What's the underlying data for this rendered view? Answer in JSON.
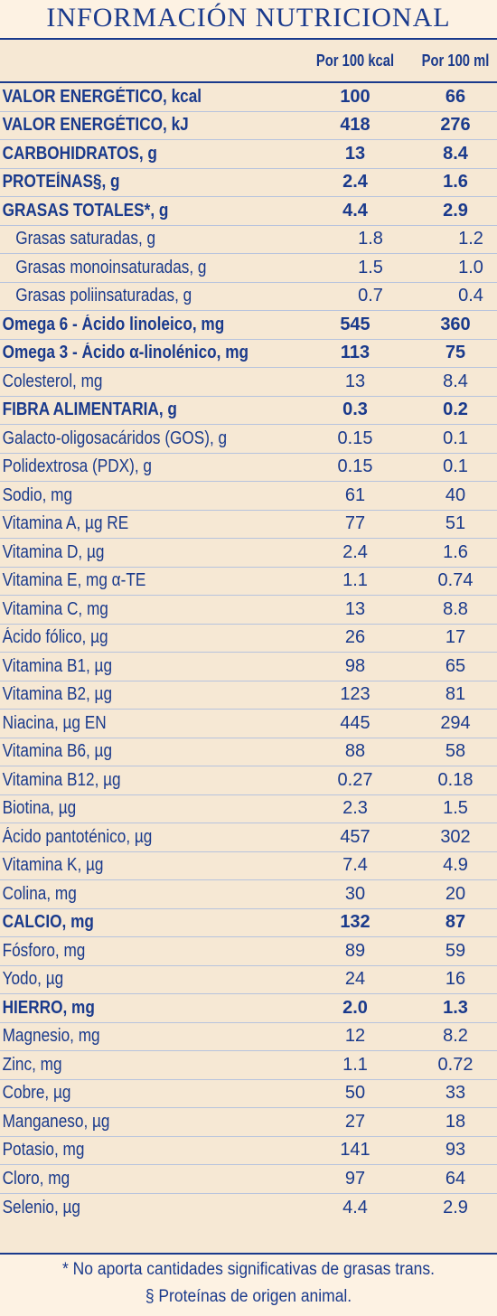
{
  "title": "INFORMACIÓN NUTRICIONAL",
  "columns": {
    "name": "",
    "per_kcal": "Por 100 kcal",
    "per_ml": "Por 100 ml"
  },
  "rows": [
    {
      "name": "VALOR ENERGÉTICO, kcal",
      "v1": "100",
      "v2": "66",
      "bold": true
    },
    {
      "name": "VALOR ENERGÉTICO, kJ",
      "v1": "418",
      "v2": "276",
      "bold": true
    },
    {
      "name": "CARBOHIDRATOS, g",
      "v1": "13",
      "v2": "8.4",
      "bold": true
    },
    {
      "name": "PROTEÍNAS§, g",
      "v1": "2.4",
      "v2": "1.6",
      "bold": true
    },
    {
      "name": "GRASAS TOTALES*, g",
      "v1": "4.4",
      "v2": "2.9",
      "bold": true
    },
    {
      "name": "Grasas saturadas, g",
      "v1": "1.8",
      "v2": "1.2",
      "sub": true
    },
    {
      "name": "Grasas monoinsaturadas, g",
      "v1": "1.5",
      "v2": "1.0",
      "sub": true
    },
    {
      "name": "Grasas poliinsaturadas, g",
      "v1": "0.7",
      "v2": "0.4",
      "sub": true
    },
    {
      "name": "Omega 6 - Ácido linoleico, mg",
      "v1": "545",
      "v2": "360",
      "bold": true
    },
    {
      "name": "Omega 3 - Ácido α-linolénico, mg",
      "v1": "113",
      "v2": "75",
      "bold": true
    },
    {
      "name": "Colesterol, mg",
      "v1": "13",
      "v2": "8.4"
    },
    {
      "name": "FIBRA ALIMENTARIA, g",
      "v1": "0.3",
      "v2": "0.2",
      "bold": true
    },
    {
      "name": "Galacto-oligosacáridos (GOS), g",
      "v1": "0.15",
      "v2": "0.1"
    },
    {
      "name": "Polidextrosa (PDX), g",
      "v1": "0.15",
      "v2": "0.1"
    },
    {
      "name": "Sodio, mg",
      "v1": "61",
      "v2": "40"
    },
    {
      "name": "Vitamina A, µg RE",
      "v1": "77",
      "v2": "51"
    },
    {
      "name": "Vitamina D, µg",
      "v1": "2.4",
      "v2": "1.6"
    },
    {
      "name": "Vitamina E, mg α-TE",
      "v1": "1.1",
      "v2": "0.74"
    },
    {
      "name": "Vitamina C, mg",
      "v1": "13",
      "v2": "8.8"
    },
    {
      "name": "Ácido fólico, µg",
      "v1": "26",
      "v2": "17"
    },
    {
      "name": "Vitamina B1, µg",
      "v1": "98",
      "v2": "65"
    },
    {
      "name": "Vitamina B2, µg",
      "v1": "123",
      "v2": "81"
    },
    {
      "name": "Niacina, µg EN",
      "v1": "445",
      "v2": "294"
    },
    {
      "name": "Vitamina B6, µg",
      "v1": "88",
      "v2": "58"
    },
    {
      "name": "Vitamina B12, µg",
      "v1": "0.27",
      "v2": "0.18"
    },
    {
      "name": "Biotina, µg",
      "v1": "2.3",
      "v2": "1.5"
    },
    {
      "name": "Ácido pantoténico, µg",
      "v1": "457",
      "v2": "302"
    },
    {
      "name": "Vitamina K, µg",
      "v1": "7.4",
      "v2": "4.9"
    },
    {
      "name": "Colina, mg",
      "v1": "30",
      "v2": "20"
    },
    {
      "name": "CALCIO, mg",
      "v1": "132",
      "v2": "87",
      "bold": true
    },
    {
      "name": "Fósforo, mg",
      "v1": "89",
      "v2": "59"
    },
    {
      "name": "Yodo, µg",
      "v1": "24",
      "v2": "16"
    },
    {
      "name": "HIERRO, mg",
      "v1": "2.0",
      "v2": "1.3",
      "bold": true
    },
    {
      "name": "Magnesio, mg",
      "v1": "12",
      "v2": "8.2"
    },
    {
      "name": "Zinc, mg",
      "v1": "1.1",
      "v2": "0.72"
    },
    {
      "name": "Cobre, µg",
      "v1": "50",
      "v2": "33"
    },
    {
      "name": "Manganeso, µg",
      "v1": "27",
      "v2": "18"
    },
    {
      "name": "Potasio, mg",
      "v1": "141",
      "v2": "93"
    },
    {
      "name": "Cloro, mg",
      "v1": "97",
      "v2": "64"
    },
    {
      "name": "Selenio, µg",
      "v1": "4.4",
      "v2": "2.9"
    }
  ],
  "footnotes": [
    "* No aporta cantidades significativas de grasas trans.",
    "§ Proteínas de origen animal."
  ],
  "colors": {
    "text": "#1a3a8c",
    "table_bg": "#f6e8d4",
    "page_bg": "#fdf2e3"
  }
}
